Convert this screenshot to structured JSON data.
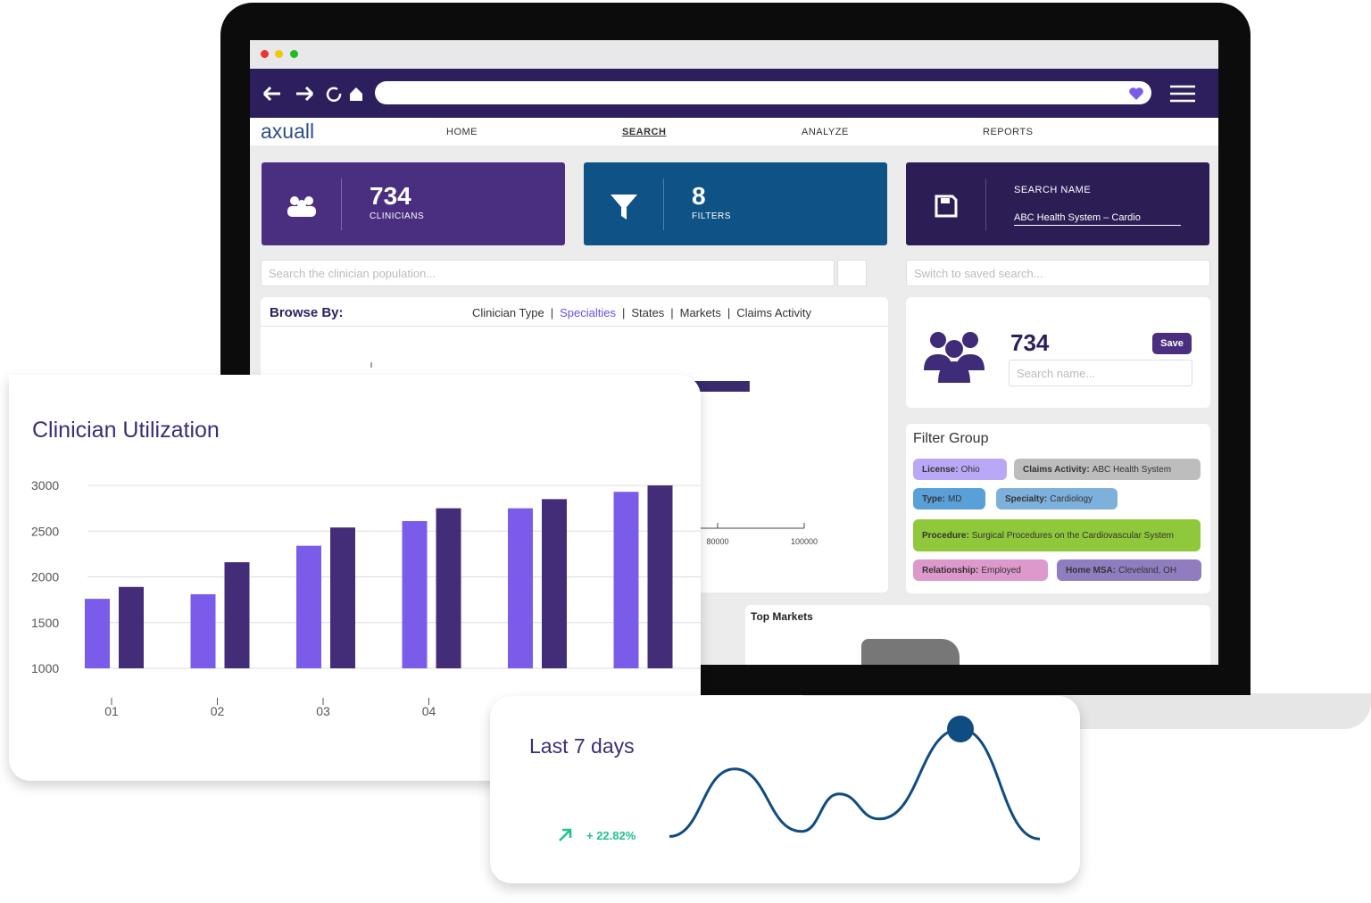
{
  "browser": {
    "logo": "axuall",
    "nav": [
      "HOME",
      "SEARCH",
      "ANALYZE",
      "REPORTS"
    ]
  },
  "stats": [
    {
      "value": "734",
      "label": "CLINICIANS"
    },
    {
      "value": "8",
      "label": "FILTERS"
    },
    {
      "label": "SEARCH NAME",
      "value": "ABC Health System – Cardio"
    }
  ],
  "search_placeholder": "Search the clinician population...",
  "saved_placeholder": "Switch to saved search...",
  "browse": {
    "title": "Browse By:",
    "tabs": [
      "Clinician Type",
      "Specialties",
      "States",
      "Markets",
      "Claims Activity"
    ]
  },
  "browse_chart": {
    "type": "bar",
    "xlim": [
      0,
      100000
    ],
    "xticks": [
      80000,
      100000
    ],
    "values": [
      87400
    ],
    "color": "#3a2a6e"
  },
  "saved": {
    "count": "734",
    "button": "Save",
    "placeholder": "Search name..."
  },
  "filter_group": {
    "title": "Filter Group",
    "chips": [
      [
        "License:",
        "Ohio"
      ],
      [
        "Claims Activity:",
        "ABC Health System"
      ],
      [
        "Type:",
        "MD"
      ],
      [
        "Specialty:",
        "Cardiology"
      ],
      [
        "Procedure:",
        "Surgical Procedures on the Cardiovascular System"
      ],
      [
        "Relationship:",
        "Employed"
      ],
      [
        "Home MSA:",
        "Cleveland, OH"
      ]
    ]
  },
  "top_markets": "Top Markets",
  "chart_data": [
    {
      "type": "bar",
      "title": "Clinician Utilization",
      "categories": [
        "01",
        "02",
        "03",
        "04",
        null,
        null
      ],
      "series": [
        {
          "color": "#7b5cea",
          "values": [
            1760,
            1810,
            2340,
            2610,
            2750,
            2930
          ]
        },
        {
          "color": "#432d78",
          "values": [
            1890,
            2160,
            2540,
            2750,
            2850,
            3000
          ]
        }
      ],
      "ylim": [
        1000,
        3000
      ],
      "yticks": [
        1000,
        1500,
        2000,
        2500,
        3000
      ],
      "grid": true
    },
    {
      "type": "line",
      "title": "Last 7 days",
      "change": "+ 22.82%",
      "values": [
        9,
        63,
        13,
        43,
        23,
        95,
        7
      ],
      "ylim": [
        0,
        100
      ],
      "color": "#0f4c81"
    }
  ]
}
